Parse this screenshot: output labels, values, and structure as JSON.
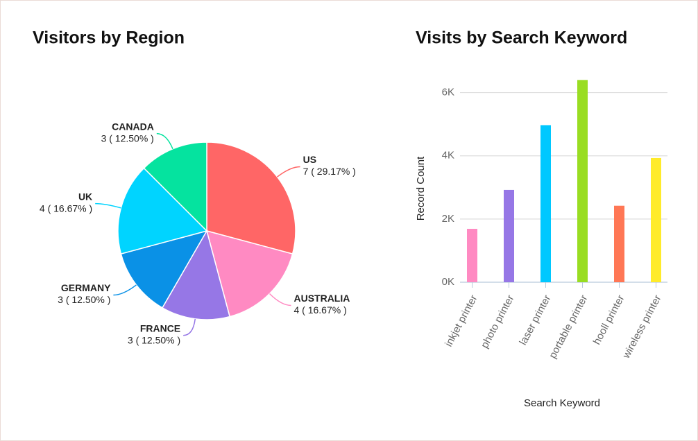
{
  "chart_data": [
    {
      "type": "pie",
      "title": "Visitors by Region",
      "categories": [
        "US",
        "AUSTRALIA",
        "FRANCE",
        "GERMANY",
        "UK",
        "CANADA"
      ],
      "values": [
        7,
        4,
        3,
        3,
        4,
        3
      ],
      "value_labels": [
        "7 ( 29.17% )",
        "4 ( 16.67% )",
        "3 ( 12.50% )",
        "3 ( 12.50% )",
        "4 ( 16.67% )",
        "3 ( 12.50% )"
      ],
      "colors": [
        "#ff6666",
        "#ff8ac2",
        "#9677e6",
        "#0a91e6",
        "#00d4ff",
        "#05e39f"
      ]
    },
    {
      "type": "bar",
      "title": "Visits by Search Keyword",
      "x_label": "Search Keyword",
      "y_label": "Record Count",
      "categories": [
        "inkjet printer",
        "photo printer",
        "laser printer",
        "portable printer",
        "hooll printer",
        "wireless printer"
      ],
      "values": [
        1690,
        2920,
        4970,
        6400,
        2420,
        3930
      ],
      "colors": [
        "#ff8ac2",
        "#9677e6",
        "#00c8ff",
        "#99dd22",
        "#ff7755",
        "#ffeb2a"
      ],
      "ylim": [
        0,
        7000
      ],
      "yticks": [
        {
          "value": 0,
          "label": "0K"
        },
        {
          "value": 2000,
          "label": "2K"
        },
        {
          "value": 4000,
          "label": "4K"
        },
        {
          "value": 6000,
          "label": "6K"
        }
      ],
      "grid": true
    }
  ]
}
